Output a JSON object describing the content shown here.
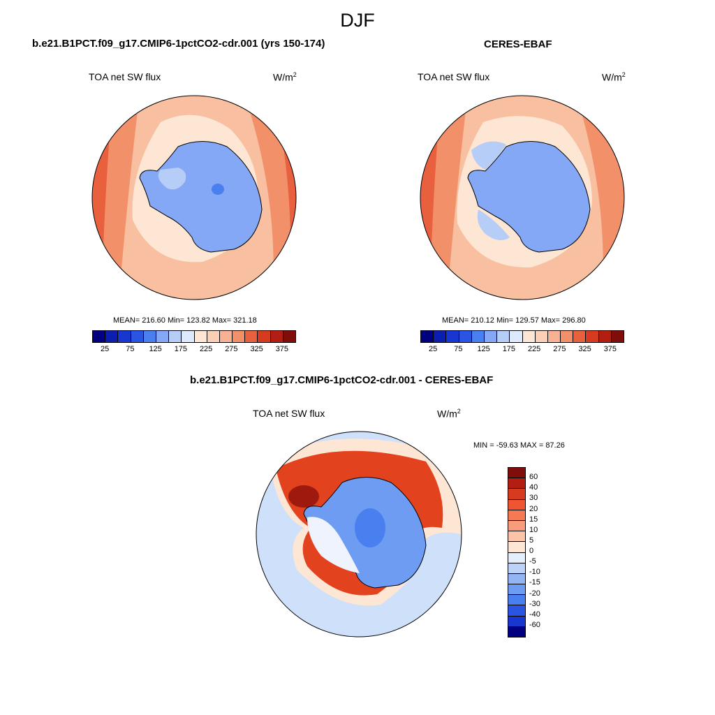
{
  "figure": {
    "title": "DJF"
  },
  "colors": {
    "land": "#84a8f5",
    "land_dark": "#4a7ff0",
    "land_light": "#b6cdf8",
    "ocean_mid": "#f8bfa0",
    "ocean_warm": "#f2906a",
    "ocean_hot": "#e8603e",
    "ocean_pale": "#fde6d4",
    "diff_ice_blue": "#6d9cf2",
    "diff_sea_blue": "#cfe0fb",
    "diff_red": "#e3421f",
    "diff_dark_red": "#9e1a0e"
  },
  "panels": {
    "model": {
      "title": "b.e21.B1PCT.f09_g17.CMIP6-1pctCO2-cdr.001 (yrs 150-174)",
      "variable": "TOA net SW flux",
      "units_base": "W/m",
      "units_exp": "2",
      "stats": "MEAN= 216.60  Min= 123.82  Max= 321.18"
    },
    "obs": {
      "title": "CERES-EBAF",
      "variable": "TOA net SW flux",
      "units_base": "W/m",
      "units_exp": "2",
      "stats": "MEAN= 210.12  Min= 129.57  Max= 296.80"
    },
    "diff": {
      "title": "b.e21.B1PCT.f09_g17.CMIP6-1pctCO2-cdr.001 - CERES-EBAF",
      "variable": "TOA net SW flux",
      "units_base": "W/m",
      "units_exp": "2",
      "stats": "MIN = -59.63 MAX =  87.26"
    }
  },
  "colorbar_top": {
    "colors": [
      "#000080",
      "#0a1fb0",
      "#1737d0",
      "#2a55e3",
      "#4a7ff0",
      "#84a8f5",
      "#b6cdf8",
      "#dde9fc",
      "#fde6d4",
      "#fbcfb6",
      "#f8b193",
      "#f2906a",
      "#e8603e",
      "#d63a1f",
      "#b31e12",
      "#7f0e0b"
    ],
    "tick_labels": [
      "25",
      "75",
      "125",
      "175",
      "225",
      "275",
      "325",
      "375"
    ]
  },
  "colorbar_diff": {
    "colors": [
      "#7f0e0b",
      "#b31e12",
      "#d63a1f",
      "#ee5530",
      "#f57a54",
      "#f89c7c",
      "#fbc4a8",
      "#fde6d4",
      "#e4eefd",
      "#bcd2f9",
      "#94b5f4",
      "#6d9cf2",
      "#4a7ff0",
      "#2a55e3",
      "#1737d0",
      "#000080"
    ],
    "tick_labels": [
      "60",
      "40",
      "30",
      "20",
      "15",
      "10",
      "5",
      "0",
      "-5",
      "-10",
      "-15",
      "-20",
      "-30",
      "-40",
      "-60"
    ]
  }
}
